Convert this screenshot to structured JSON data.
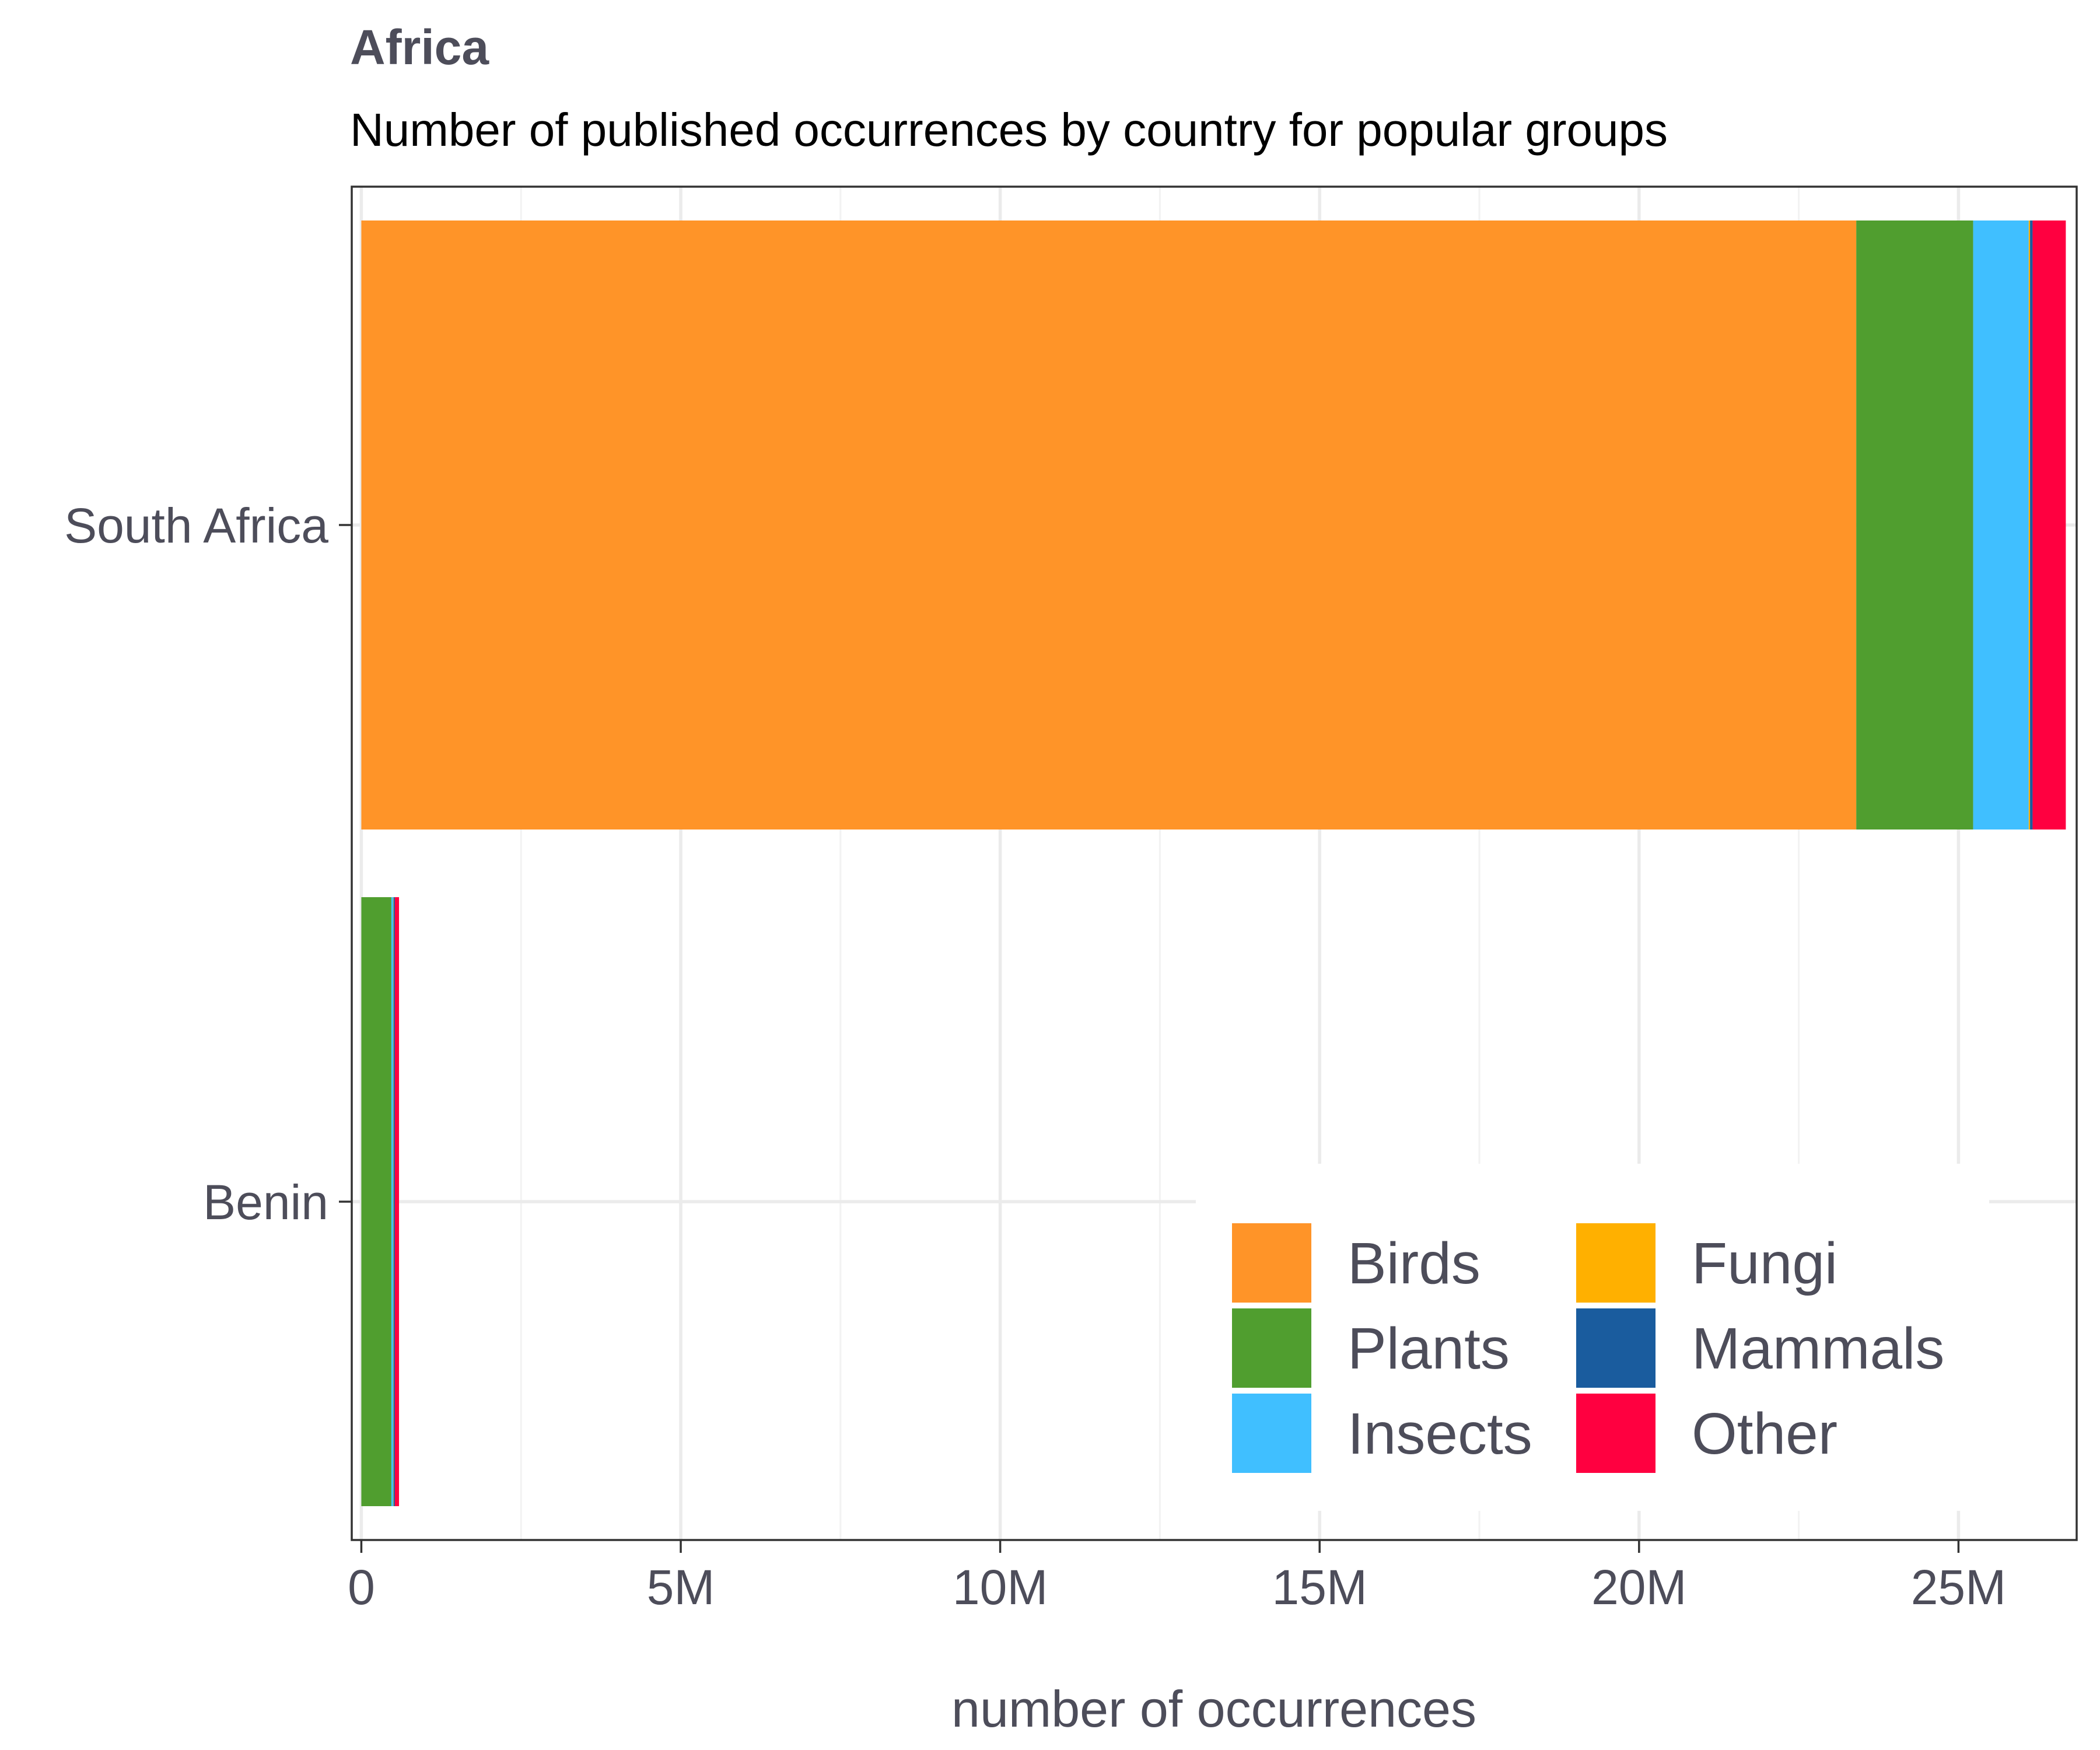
{
  "chart_data": {
    "type": "bar",
    "orientation": "horizontal",
    "stacked": true,
    "title": "Africa",
    "subtitle": "Number of published occurrences by country for popular groups",
    "xlabel": "number of occurrences",
    "ylabel": "",
    "xlim": [
      -150000,
      26850000
    ],
    "x_ticks": [
      0,
      5000000,
      10000000,
      15000000,
      20000000,
      25000000
    ],
    "x_tick_labels": [
      "0",
      "5M",
      "10M",
      "15M",
      "20M",
      "25M"
    ],
    "categories": [
      "South Africa",
      "Benin"
    ],
    "grid": true,
    "legend_position": "bottom-right",
    "legend_columns": 2,
    "series": [
      {
        "name": "Birds",
        "color": "#FF9428",
        "values": [
          23400000,
          0
        ]
      },
      {
        "name": "Plants",
        "color": "#509E2F",
        "values": [
          1830000,
          470000
        ]
      },
      {
        "name": "Insects",
        "color": "#40BFFF",
        "values": [
          870000,
          30000
        ]
      },
      {
        "name": "Fungi",
        "color": "#FFB000",
        "values": [
          20000,
          5000
        ]
      },
      {
        "name": "Mammals",
        "color": "#1A5C9E",
        "values": [
          40000,
          20000
        ]
      },
      {
        "name": "Other",
        "color": "#FF0040",
        "values": [
          520000,
          65000
        ]
      }
    ]
  }
}
